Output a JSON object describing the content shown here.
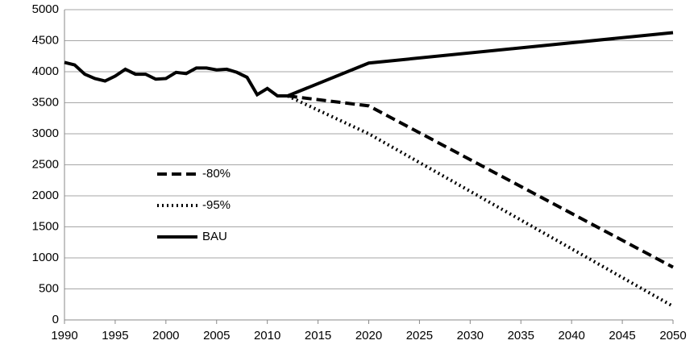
{
  "chart_data": {
    "type": "line",
    "x": [
      1990,
      1991,
      1992,
      1993,
      1994,
      1995,
      1996,
      1997,
      1998,
      1999,
      2000,
      2001,
      2002,
      2003,
      2004,
      2005,
      2006,
      2007,
      2008,
      2009,
      2010,
      2011,
      2012,
      2020,
      2050
    ],
    "series": [
      {
        "name": "-80%",
        "color": "#000000",
        "dash": "dashed",
        "values": [
          null,
          null,
          null,
          null,
          null,
          null,
          null,
          null,
          null,
          null,
          null,
          null,
          null,
          null,
          null,
          null,
          null,
          null,
          null,
          null,
          null,
          null,
          3610,
          3450,
          850
        ]
      },
      {
        "name": "-95%",
        "color": "#000000",
        "dash": "dotted",
        "values": [
          null,
          null,
          null,
          null,
          null,
          null,
          null,
          null,
          null,
          null,
          null,
          null,
          null,
          null,
          null,
          null,
          null,
          null,
          null,
          null,
          null,
          null,
          3610,
          3000,
          220
        ]
      },
      {
        "name": "BAU",
        "color": "#000000",
        "dash": "solid",
        "values": [
          4150,
          4110,
          3960,
          3890,
          3850,
          3930,
          4040,
          3960,
          3960,
          3880,
          3890,
          3990,
          3970,
          4060,
          4060,
          4030,
          4040,
          3990,
          3910,
          3630,
          3730,
          3610,
          3610,
          4140,
          4630
        ]
      }
    ],
    "xlim": [
      1990,
      2050
    ],
    "xticks": [
      1990,
      1995,
      2000,
      2005,
      2010,
      2015,
      2020,
      2025,
      2030,
      2035,
      2040,
      2045,
      2050
    ],
    "ylim": [
      0,
      5000
    ],
    "yticks": [
      0,
      500,
      1000,
      1500,
      2000,
      2500,
      3000,
      3500,
      4000,
      4500,
      5000
    ],
    "grid": true,
    "legend": "center-left"
  }
}
